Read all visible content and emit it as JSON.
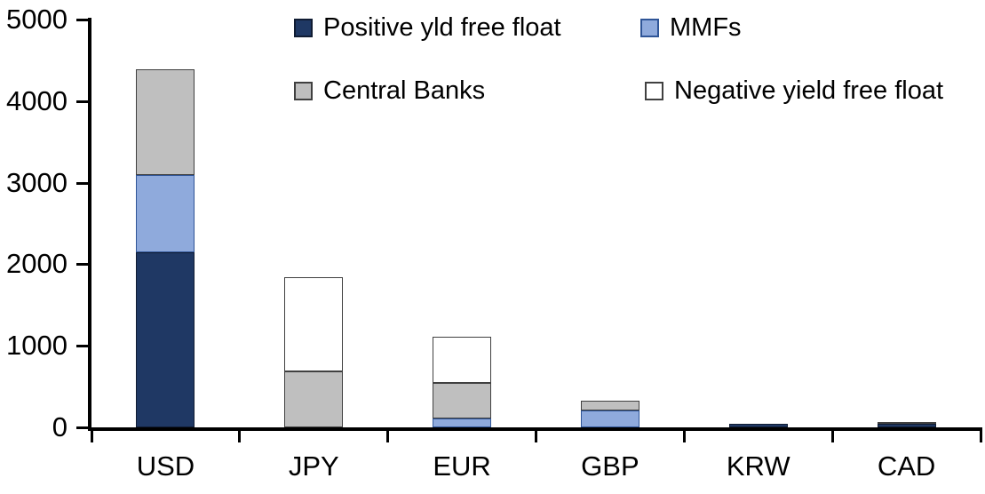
{
  "chart_data": {
    "type": "bar",
    "stacked": true,
    "title": "",
    "xlabel": "",
    "ylabel": "",
    "categories": [
      "USD",
      "JPY",
      "EUR",
      "GBP",
      "KRW",
      "CAD"
    ],
    "series": [
      {
        "name": "Positive yld free float",
        "color": "#1f3864",
        "border": "#101c33",
        "values": [
          2150,
          0,
          0,
          0,
          40,
          40
        ]
      },
      {
        "name": "MMFs",
        "color": "#8faadc",
        "border": "#2f5597",
        "values": [
          940,
          0,
          110,
          210,
          0,
          0
        ]
      },
      {
        "name": "Central Banks",
        "color": "#bfbfbf",
        "border": "#404040",
        "values": [
          1300,
          690,
          430,
          120,
          0,
          20
        ]
      },
      {
        "name": "Negative yield free float",
        "color": "#ffffff",
        "border": "#404040",
        "values": [
          0,
          1150,
          570,
          0,
          0,
          0
        ]
      }
    ],
    "totals": [
      4390,
      1840,
      1110,
      330,
      40,
      60
    ],
    "ylim": [
      0,
      5000
    ],
    "ytick_interval": 1000,
    "ytick_labels": [
      "0",
      "1000",
      "2000",
      "3000",
      "4000",
      "5000"
    ],
    "grid": false,
    "legend_position": "top",
    "legend_columns": 2,
    "axis_color": "#000000",
    "background": "#ffffff"
  }
}
